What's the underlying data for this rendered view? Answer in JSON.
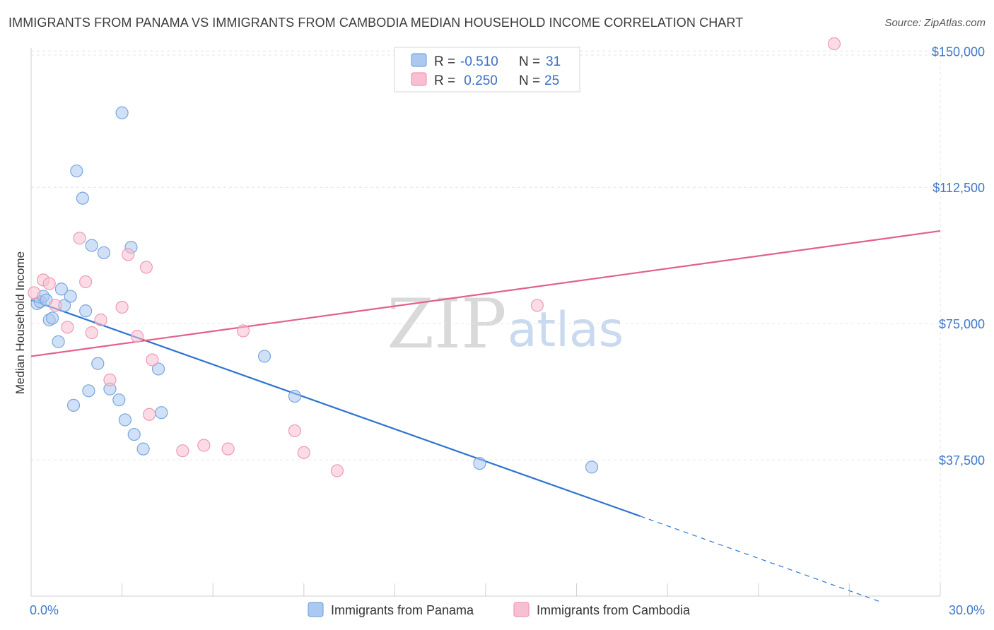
{
  "title": "IMMIGRANTS FROM PANAMA VS IMMIGRANTS FROM CAMBODIA MEDIAN HOUSEHOLD INCOME CORRELATION CHART",
  "source": "Source: ZipAtlas.com",
  "watermark": {
    "zip": "ZIP",
    "atlas": "atlas"
  },
  "colors": {
    "panama_fill": "#aac8f0",
    "panama_stroke": "#7aa6dd",
    "panama_line": "#2f74d0",
    "cambodia_fill": "#f7bfd0",
    "cambodia_stroke": "#ee9ab4",
    "cambodia_line": "#e2608a",
    "grid": "#e6e6e6",
    "axis_text": "#3f78c9"
  },
  "legend": {
    "rows": [
      {
        "r_label": "R = ",
        "r_value": "-0.510",
        "n_label": "N = ",
        "n_value": "31"
      },
      {
        "r_label": "R = ",
        "r_value": " 0.250",
        "n_label": "N = ",
        "n_value": "25"
      }
    ]
  },
  "chart_data": {
    "type": "scatter",
    "title": "IMMIGRANTS FROM PANAMA VS IMMIGRANTS FROM CAMBODIA MEDIAN HOUSEHOLD INCOME CORRELATION CHART",
    "xlabel": "",
    "ylabel": "Median Household Income",
    "xlim": [
      0.0,
      30.0
    ],
    "ylim": [
      0,
      152000
    ],
    "x_tick_labels": [
      "0.0%",
      "30.0%"
    ],
    "y_ticks": [
      37500,
      75000,
      112500,
      150000
    ],
    "y_tick_labels": [
      "$37,500",
      "$75,000",
      "$112,500",
      "$150,000"
    ],
    "grid": true,
    "series": [
      {
        "name": "Immigrants from Panama",
        "points": [
          [
            0.2,
            80500
          ],
          [
            0.3,
            81000
          ],
          [
            0.4,
            82500
          ],
          [
            0.5,
            81500
          ],
          [
            0.6,
            76000
          ],
          [
            0.7,
            76500
          ],
          [
            0.9,
            70000
          ],
          [
            1.0,
            84500
          ],
          [
            1.1,
            80000
          ],
          [
            1.3,
            82500
          ],
          [
            1.4,
            52500
          ],
          [
            1.5,
            117000
          ],
          [
            1.7,
            109500
          ],
          [
            1.8,
            78500
          ],
          [
            1.9,
            56500
          ],
          [
            2.0,
            96500
          ],
          [
            2.2,
            64000
          ],
          [
            2.4,
            94500
          ],
          [
            2.6,
            57000
          ],
          [
            2.9,
            54000
          ],
          [
            3.0,
            133000
          ],
          [
            3.1,
            48500
          ],
          [
            3.3,
            96000
          ],
          [
            3.4,
            44500
          ],
          [
            3.7,
            40500
          ],
          [
            4.2,
            62500
          ],
          [
            4.3,
            50500
          ],
          [
            7.7,
            66000
          ],
          [
            8.7,
            55000
          ],
          [
            14.8,
            36500
          ],
          [
            18.5,
            35500
          ]
        ],
        "trend": {
          "x0": 0.0,
          "y0": 81500,
          "x1": 20.1,
          "y1": 22000,
          "dash_x1": 28.0,
          "dash_y1": -1500
        }
      },
      {
        "name": "Immigrants from Cambodia",
        "points": [
          [
            0.1,
            83500
          ],
          [
            0.4,
            87000
          ],
          [
            0.6,
            86000
          ],
          [
            0.8,
            80000
          ],
          [
            1.2,
            74000
          ],
          [
            1.6,
            98500
          ],
          [
            1.8,
            86500
          ],
          [
            2.0,
            72500
          ],
          [
            2.3,
            76000
          ],
          [
            2.6,
            59500
          ],
          [
            3.0,
            79500
          ],
          [
            3.2,
            94000
          ],
          [
            3.5,
            71500
          ],
          [
            3.8,
            90500
          ],
          [
            3.9,
            50000
          ],
          [
            4.0,
            65000
          ],
          [
            5.0,
            40000
          ],
          [
            5.7,
            41500
          ],
          [
            6.5,
            40500
          ],
          [
            7.0,
            73000
          ],
          [
            8.7,
            45500
          ],
          [
            9.0,
            39500
          ],
          [
            10.1,
            34500
          ],
          [
            16.7,
            80000
          ],
          [
            26.5,
            152000
          ]
        ],
        "trend": {
          "x0": 0.0,
          "y0": 66000,
          "x1": 30.0,
          "y1": 100500
        }
      }
    ]
  }
}
